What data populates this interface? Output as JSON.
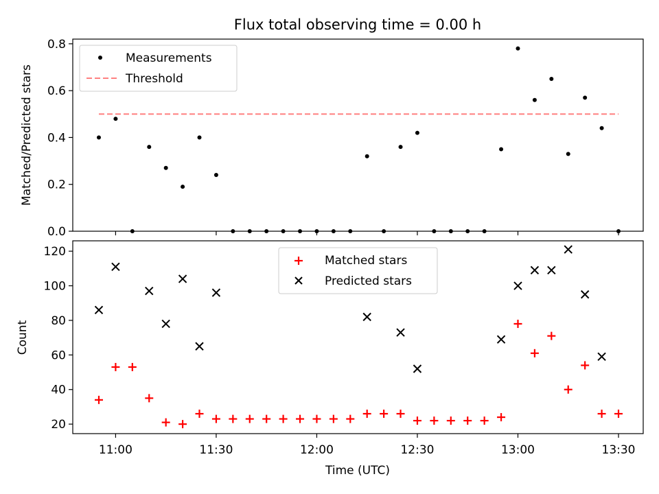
{
  "chart_data": [
    {
      "type": "scatter",
      "title": "Flux total observing time = 0.00 h",
      "xlabel": "",
      "ylabel": "Matched/Predicted stars",
      "ylim": [
        0,
        0.82
      ],
      "yticks": [
        "0.0",
        "0.2",
        "0.4",
        "0.6",
        "0.8"
      ],
      "grid": false,
      "legend_position": "upper-left",
      "threshold": {
        "name": "Threshold",
        "value": 0.5,
        "x_range": [
          "10:55",
          "13:30"
        ],
        "color": "#ff8080",
        "style": "dashed"
      },
      "series": [
        {
          "name": "Measurements",
          "color": "#000000",
          "marker": "dot",
          "x": [
            "10:55",
            "11:00",
            "11:05",
            "11:10",
            "11:15",
            "11:20",
            "11:25",
            "11:30",
            "11:35",
            "11:40",
            "11:45",
            "11:50",
            "11:55",
            "12:00",
            "12:05",
            "12:10",
            "12:15",
            "12:20",
            "12:25",
            "12:30",
            "12:35",
            "12:40",
            "12:45",
            "12:50",
            "12:55",
            "13:00",
            "13:05",
            "13:10",
            "13:15",
            "13:20",
            "13:25",
            "13:30"
          ],
          "y": [
            0.4,
            0.48,
            0.0,
            0.36,
            0.27,
            0.19,
            0.4,
            0.24,
            0.0,
            0.0,
            0.0,
            0.0,
            0.0,
            0.0,
            0.0,
            0.0,
            0.32,
            0.0,
            0.36,
            0.42,
            0.0,
            0.0,
            0.0,
            0.0,
            0.35,
            0.78,
            0.56,
            0.65,
            0.33,
            0.57,
            0.44,
            0.0
          ]
        }
      ]
    },
    {
      "type": "scatter",
      "title": "",
      "xlabel": "Time (UTC)",
      "ylabel": "Count",
      "ylim": [
        14.5,
        126
      ],
      "yticks": [
        "20",
        "40",
        "60",
        "80",
        "100",
        "120"
      ],
      "xticks": [
        "11:00",
        "11:30",
        "12:00",
        "12:30",
        "13:00",
        "13:30"
      ],
      "grid": false,
      "legend_position": "upper-center",
      "series": [
        {
          "name": "Matched stars",
          "color": "#ff0000",
          "marker": "plus",
          "x": [
            "10:55",
            "11:00",
            "11:05",
            "11:10",
            "11:15",
            "11:20",
            "11:25",
            "11:30",
            "11:35",
            "11:40",
            "11:45",
            "11:50",
            "11:55",
            "12:00",
            "12:05",
            "12:10",
            "12:15",
            "12:20",
            "12:25",
            "12:30",
            "12:35",
            "12:40",
            "12:45",
            "12:50",
            "12:55",
            "13:00",
            "13:05",
            "13:10",
            "13:15",
            "13:20",
            "13:25",
            "13:30"
          ],
          "y": [
            34,
            53,
            53,
            35,
            21,
            20,
            26,
            23,
            23,
            23,
            23,
            23,
            23,
            23,
            23,
            23,
            26,
            26,
            26,
            22,
            22,
            22,
            22,
            22,
            24,
            78,
            61,
            71,
            40,
            54,
            26,
            26
          ]
        },
        {
          "name": "Predicted stars",
          "color": "#000000",
          "marker": "x",
          "x": [
            "10:55",
            "11:00",
            "11:10",
            "11:15",
            "11:20",
            "11:25",
            "11:30",
            "12:15",
            "12:25",
            "12:30",
            "12:55",
            "13:00",
            "13:05",
            "13:10",
            "13:15",
            "13:20",
            "13:25"
          ],
          "y": [
            86,
            111,
            97,
            78,
            104,
            65,
            96,
            82,
            73,
            52,
            69,
            100,
            109,
            109,
            121,
            95,
            59
          ]
        }
      ]
    }
  ]
}
